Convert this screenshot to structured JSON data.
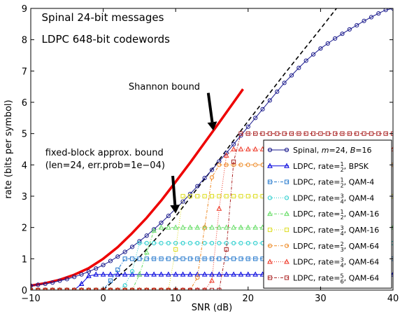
{
  "chart_data": {
    "type": "line",
    "xlabel": "SNR (dB)",
    "ylabel": "rate (bits per symbol)",
    "xlim": [
      -10,
      40
    ],
    "ylim": [
      0,
      9
    ],
    "xticks": [
      "−10",
      "0",
      "10",
      "20",
      "30",
      "40"
    ],
    "xtick_values": [
      -10,
      0,
      10,
      20,
      30,
      40
    ],
    "yticks": [
      "0",
      "1",
      "2",
      "3",
      "4",
      "5",
      "6",
      "7",
      "8",
      "9"
    ],
    "ytick_values": [
      0,
      1,
      2,
      3,
      4,
      5,
      6,
      7,
      8,
      9
    ],
    "grid": false,
    "legend_position": "lower-right",
    "annotations": [
      {
        "text": "Spinal 24-bit messages",
        "x": -8.5,
        "y": 8.6
      },
      {
        "text": "LDPC 648-bit codewords",
        "x": -8.5,
        "y": 7.9
      },
      {
        "text": "Shannon bound",
        "x": 3.5,
        "y": 6.4
      },
      {
        "text": "fixed-block approx. bound",
        "x": -8.0,
        "y": 4.3
      },
      {
        "text": "(len=24, err.prob=1e−04)",
        "x": -8.0,
        "y": 3.9
      }
    ],
    "arrows": [
      {
        "from": [
          14.5,
          6.3
        ],
        "to": [
          15.2,
          5.1
        ]
      },
      {
        "from": [
          9.6,
          3.65
        ],
        "to": [
          10.0,
          2.45
        ]
      }
    ],
    "series": [
      {
        "name": "Shannon bound",
        "style": "line",
        "color": "#ee0000",
        "x": [
          -10,
          -8,
          -6,
          -4,
          -2,
          0,
          2,
          4,
          6,
          8,
          10,
          12,
          14,
          16,
          18,
          19.3
        ],
        "y": [
          0.14,
          0.22,
          0.33,
          0.49,
          0.7,
          1.0,
          1.37,
          1.82,
          2.31,
          2.86,
          3.46,
          4.07,
          4.71,
          5.35,
          6.0,
          6.42
        ]
      },
      {
        "name": "fixed-block approx. bound",
        "style": "dashed",
        "color": "#000000",
        "x": [
          0,
          5,
          10,
          15,
          20,
          25,
          30,
          32.2
        ],
        "y": [
          0.0,
          1.05,
          2.35,
          3.85,
          5.4,
          6.9,
          8.35,
          9.0
        ]
      },
      {
        "name": "Spinal, m=24, B=16",
        "style": "line-marker",
        "marker": "circle",
        "color": "#1a1a8c",
        "x": [
          -10,
          -9,
          -8,
          -7,
          -6,
          -5,
          -4,
          -3,
          -2,
          -1,
          0,
          1,
          2,
          3,
          4,
          5,
          6,
          7,
          8,
          9,
          10,
          11,
          12,
          13,
          14,
          15,
          16,
          17,
          18,
          19,
          20,
          21,
          22,
          23,
          24,
          25,
          26,
          27,
          28,
          29,
          30,
          31,
          32,
          33,
          34,
          35,
          36,
          37,
          38,
          39,
          40
        ],
        "y": [
          0.14,
          0.17,
          0.2,
          0.24,
          0.3,
          0.35,
          0.42,
          0.5,
          0.59,
          0.69,
          0.8,
          0.93,
          1.07,
          1.22,
          1.38,
          1.56,
          1.74,
          1.94,
          2.15,
          2.37,
          2.6,
          2.83,
          3.07,
          3.32,
          3.58,
          3.84,
          4.11,
          4.38,
          4.66,
          4.94,
          5.22,
          5.5,
          5.78,
          6.06,
          6.34,
          6.62,
          6.86,
          7.1,
          7.33,
          7.53,
          7.72,
          7.88,
          8.04,
          8.19,
          8.33,
          8.46,
          8.6,
          8.72,
          8.84,
          8.95,
          9.0
        ]
      },
      {
        "name": "LDPC, rate=1/2, BPSK",
        "style": "line-marker",
        "marker": "triangle",
        "color": "#0000dd",
        "x": [
          -10,
          -9,
          -8,
          -7,
          -6,
          -5,
          -4,
          -3,
          -2,
          -1,
          0,
          1,
          2,
          3,
          4,
          5,
          6,
          7,
          8,
          9,
          10,
          11,
          12,
          13,
          14,
          15,
          16,
          17,
          18,
          19,
          20,
          21,
          22,
          23,
          24,
          25,
          26,
          27,
          28,
          29,
          30,
          31,
          32,
          33,
          34,
          35,
          36,
          37,
          38,
          39,
          40
        ],
        "y": [
          0,
          0,
          0,
          0,
          0,
          0,
          0,
          0.2,
          0.45,
          0.5,
          0.5,
          0.5,
          0.5,
          0.5,
          0.5,
          0.5,
          0.5,
          0.5,
          0.5,
          0.5,
          0.5,
          0.5,
          0.5,
          0.5,
          0.5,
          0.5,
          0.5,
          0.5,
          0.5,
          0.5,
          0.5,
          0.5,
          0.5,
          0.5,
          0.5,
          0.5,
          0.5,
          0.5,
          0.5,
          0.5,
          0.5,
          0.5,
          0.5,
          0.5,
          0.5,
          0.5,
          0.5,
          0.5,
          0.5,
          0.5,
          0.5
        ]
      },
      {
        "name": "LDPC, rate=1/2, QAM-4",
        "style": "line-marker",
        "marker": "square",
        "color": "#2277cc",
        "x": [
          -10,
          -9,
          -8,
          -7,
          -6,
          -5,
          -4,
          -3,
          -2,
          -1,
          0,
          1,
          2,
          3,
          4,
          5,
          6,
          7,
          8,
          9,
          10,
          11,
          12,
          13,
          14,
          15,
          16,
          17,
          18,
          19,
          20,
          21,
          22,
          23,
          24,
          25,
          26,
          27,
          28,
          29,
          30,
          31,
          32,
          33,
          34,
          35,
          36,
          37,
          38,
          39,
          40
        ],
        "y": [
          0,
          0,
          0,
          0,
          0,
          0,
          0,
          0,
          0,
          0,
          0,
          0.3,
          0.65,
          1,
          1,
          1,
          1,
          1,
          1,
          1,
          1,
          1,
          1,
          1,
          1,
          1,
          1,
          1,
          1,
          1,
          1,
          1,
          1,
          1,
          1,
          1,
          1,
          1,
          1,
          1,
          1,
          1,
          1,
          1,
          1,
          1,
          1,
          1,
          1,
          1,
          1
        ]
      },
      {
        "name": "LDPC, rate=3/4, QAM-4",
        "style": "line-marker",
        "marker": "circle",
        "color": "#22cccc",
        "x": [
          -10,
          -9,
          -8,
          -7,
          -6,
          -5,
          -4,
          -3,
          -2,
          -1,
          0,
          1,
          2,
          3,
          4,
          5,
          6,
          7,
          8,
          9,
          10,
          11,
          12,
          13,
          14,
          15,
          16,
          17,
          18,
          19,
          20,
          21,
          22,
          23,
          24,
          25,
          26,
          27,
          28,
          29,
          30,
          31,
          32,
          33,
          34,
          35,
          36,
          37,
          38,
          39,
          40
        ],
        "y": [
          0,
          0,
          0,
          0,
          0,
          0,
          0,
          0,
          0,
          0,
          0,
          0,
          0,
          0.15,
          0.6,
          1.5,
          1.5,
          1.5,
          1.5,
          1.5,
          1.5,
          1.5,
          1.5,
          1.5,
          1.5,
          1.5,
          1.5,
          1.5,
          1.5,
          1.5,
          1.5,
          1.5,
          1.5,
          1.5,
          1.5,
          1.5,
          1.5,
          1.5,
          1.5,
          1.5,
          1.5,
          1.5,
          1.5,
          1.5,
          1.5,
          1.5,
          1.5,
          1.5,
          1.5,
          1.5,
          1.5
        ]
      },
      {
        "name": "LDPC, rate=1/2, QAM-16",
        "style": "line-marker",
        "marker": "triangle",
        "color": "#66dd66",
        "x": [
          -10,
          -9,
          -8,
          -7,
          -6,
          -5,
          -4,
          -3,
          -2,
          -1,
          0,
          1,
          2,
          3,
          4,
          5,
          6,
          7,
          8,
          9,
          10,
          11,
          12,
          13,
          14,
          15,
          16,
          17,
          18,
          19,
          20,
          21,
          22,
          23,
          24,
          25,
          26,
          27,
          28,
          29,
          30,
          31,
          32,
          33,
          34,
          35,
          36,
          37,
          38,
          39,
          40
        ],
        "y": [
          0,
          0,
          0,
          0,
          0,
          0,
          0,
          0,
          0,
          0,
          0,
          0,
          0,
          0,
          0,
          0.5,
          1.2,
          1.9,
          2,
          2,
          2,
          2,
          2,
          2,
          2,
          2,
          2,
          2,
          2,
          2,
          2,
          2,
          2,
          2,
          2,
          2,
          2,
          2,
          2,
          2,
          2,
          2,
          2,
          2,
          2,
          2,
          2,
          2,
          2,
          2,
          2
        ]
      },
      {
        "name": "LDPC, rate=3/4, QAM-16",
        "style": "line-marker",
        "marker": "square",
        "color": "#dddd22",
        "x": [
          -10,
          -9,
          -8,
          -7,
          -6,
          -5,
          -4,
          -3,
          -2,
          -1,
          0,
          1,
          2,
          3,
          4,
          5,
          6,
          7,
          8,
          9,
          10,
          11,
          12,
          13,
          14,
          15,
          16,
          17,
          18,
          19,
          20,
          21,
          22,
          23,
          24,
          25,
          26,
          27,
          28,
          29,
          30,
          31,
          32,
          33,
          34,
          35,
          36,
          37,
          38,
          39,
          40
        ],
        "y": [
          0,
          0,
          0,
          0,
          0,
          0,
          0,
          0,
          0,
          0,
          0,
          0,
          0,
          0,
          0,
          0,
          0,
          0,
          0,
          0,
          1.3,
          3,
          3,
          3,
          3,
          3,
          3,
          3,
          3,
          3,
          3,
          3,
          3,
          3,
          3,
          3,
          3,
          3,
          3,
          3,
          3,
          3,
          3,
          3,
          3,
          3,
          3,
          3,
          3,
          3,
          3
        ]
      },
      {
        "name": "LDPC, rate=2/3, QAM-64",
        "style": "line-marker",
        "marker": "circle",
        "color": "#ee8822",
        "x": [
          -10,
          -9,
          -8,
          -7,
          -6,
          -5,
          -4,
          -3,
          -2,
          -1,
          0,
          1,
          2,
          3,
          4,
          5,
          6,
          7,
          8,
          9,
          10,
          11,
          12,
          13,
          14,
          15,
          16,
          17,
          18,
          19,
          20,
          21,
          22,
          23,
          24,
          25,
          26,
          27,
          28,
          29,
          30,
          31,
          32,
          33,
          34,
          35,
          36,
          37,
          38,
          39,
          40
        ],
        "y": [
          0,
          0,
          0,
          0,
          0,
          0,
          0,
          0,
          0,
          0,
          0,
          0,
          0,
          0,
          0,
          0,
          0,
          0,
          0,
          0,
          0,
          0,
          0,
          0.4,
          2,
          3.6,
          4,
          4,
          4,
          4,
          4,
          4,
          4,
          4,
          4,
          4,
          4,
          4,
          4,
          4,
          4,
          4,
          4,
          4,
          4,
          4,
          4,
          4,
          4,
          4,
          4
        ]
      },
      {
        "name": "LDPC, rate=3/4, QAM-64",
        "style": "line-marker",
        "marker": "triangle",
        "color": "#ee3322",
        "x": [
          -10,
          -9,
          -8,
          -7,
          -6,
          -5,
          -4,
          -3,
          -2,
          -1,
          0,
          1,
          2,
          3,
          4,
          5,
          6,
          7,
          8,
          9,
          10,
          11,
          12,
          13,
          14,
          15,
          16,
          17,
          18,
          19,
          20,
          21,
          22,
          23,
          24,
          25,
          26,
          27,
          28,
          29,
          30,
          31,
          32,
          33,
          34,
          35,
          36,
          37,
          38,
          39,
          40
        ],
        "y": [
          0,
          0,
          0,
          0,
          0,
          0,
          0,
          0,
          0,
          0,
          0,
          0,
          0,
          0,
          0,
          0,
          0,
          0,
          0,
          0,
          0,
          0,
          0,
          0,
          0,
          0.3,
          2.6,
          4.3,
          4.5,
          4.5,
          4.5,
          4.5,
          4.5,
          4.5,
          4.5,
          4.5,
          4.5,
          4.5,
          4.5,
          4.5,
          4.5,
          4.5,
          4.5,
          4.5,
          4.5,
          4.5,
          4.5,
          4.5,
          4.5,
          4.5,
          4.5
        ]
      },
      {
        "name": "LDPC, rate=5/6, QAM-64",
        "style": "line-marker",
        "marker": "square",
        "color": "#aa2222",
        "x": [
          -10,
          -9,
          -8,
          -7,
          -6,
          -5,
          -4,
          -3,
          -2,
          -1,
          0,
          1,
          2,
          3,
          4,
          5,
          6,
          7,
          8,
          9,
          10,
          11,
          12,
          13,
          14,
          15,
          16,
          17,
          18,
          19,
          20,
          21,
          22,
          23,
          24,
          25,
          26,
          27,
          28,
          29,
          30,
          31,
          32,
          33,
          34,
          35,
          36,
          37,
          38,
          39,
          40
        ],
        "y": [
          0,
          0,
          0,
          0,
          0,
          0,
          0,
          0,
          0,
          0,
          0,
          0,
          0,
          0,
          0,
          0,
          0,
          0,
          0,
          0,
          0,
          0,
          0,
          0,
          0,
          0,
          0,
          1.3,
          4.1,
          5,
          5,
          5,
          5,
          5,
          5,
          5,
          5,
          5,
          5,
          5,
          5,
          5,
          5,
          5,
          5,
          5,
          5,
          5,
          5,
          5,
          5
        ]
      }
    ],
    "legend": [
      {
        "series": 2,
        "pre": "Spinal, ",
        "mathA": "m",
        "mid": "=24, ",
        "mathB": "B",
        "post": "=16"
      },
      {
        "series": 3,
        "pre": "LDPC, rate=",
        "num": "1",
        "den": "2",
        "post": ", BPSK"
      },
      {
        "series": 4,
        "pre": "LDPC, rate=",
        "num": "1",
        "den": "2",
        "post": ", QAM-4"
      },
      {
        "series": 5,
        "pre": "LDPC, rate=",
        "num": "3",
        "den": "4",
        "post": ", QAM-4"
      },
      {
        "series": 6,
        "pre": "LDPC, rate=",
        "num": "1",
        "den": "2",
        "post": ", QAM-16"
      },
      {
        "series": 7,
        "pre": "LDPC, rate=",
        "num": "3",
        "den": "4",
        "post": ", QAM-16"
      },
      {
        "series": 8,
        "pre": "LDPC, rate=",
        "num": "2",
        "den": "3",
        "post": ", QAM-64"
      },
      {
        "series": 9,
        "pre": "LDPC, rate=",
        "num": "3",
        "den": "4",
        "post": ", QAM-64"
      },
      {
        "series": 10,
        "pre": "LDPC, rate=",
        "num": "5",
        "den": "6",
        "post": ", QAM-64"
      }
    ]
  }
}
